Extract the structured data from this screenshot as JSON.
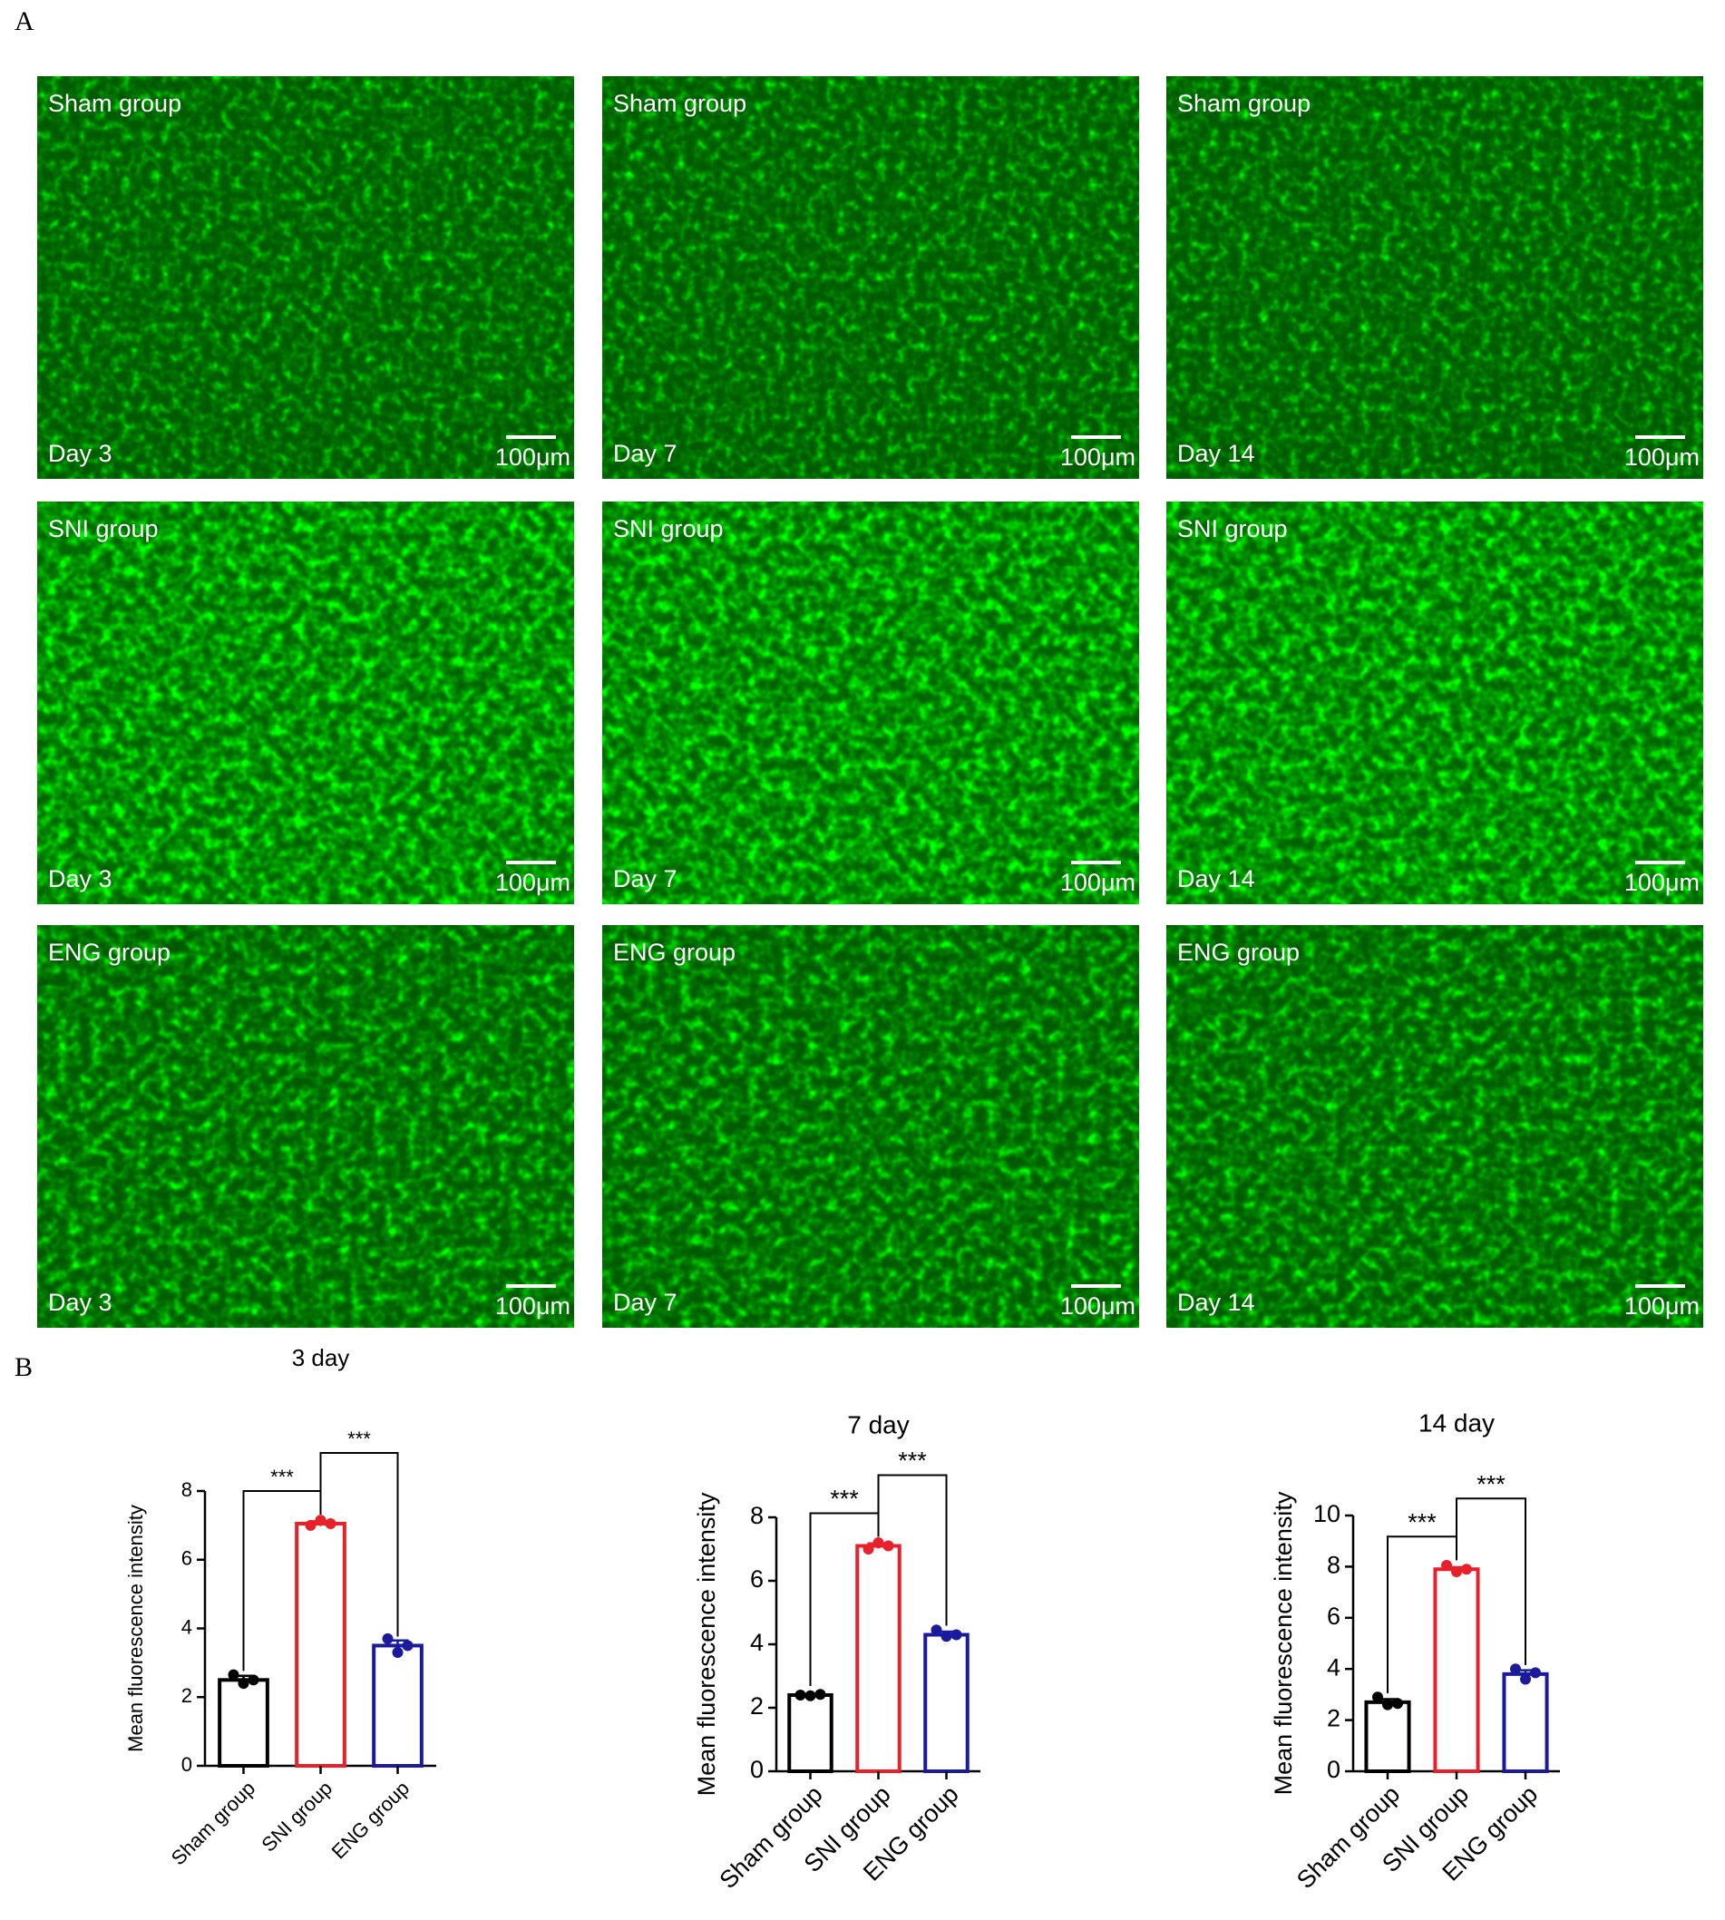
{
  "panel_labels": [
    "A",
    "B"
  ],
  "images": [
    {
      "group": "Sham group",
      "day": "Day 3",
      "scale": "100μm"
    },
    {
      "group": "Sham group",
      "day": "Day 7",
      "scale": "100μm"
    },
    {
      "group": "Sham group",
      "day": "Day 14",
      "scale": "100μm"
    },
    {
      "group": "SNI group",
      "day": "Day 3",
      "scale": "100μm"
    },
    {
      "group": "SNI group",
      "day": "Day 7",
      "scale": "100μm"
    },
    {
      "group": "SNI group",
      "day": "Day 14",
      "scale": "100μm"
    },
    {
      "group": "ENG group",
      "day": "Day 3",
      "scale": "100μm"
    },
    {
      "group": "ENG group",
      "day": "Day 7",
      "scale": "100μm"
    },
    {
      "group": "ENG group",
      "day": "Day 14",
      "scale": "100μm"
    }
  ],
  "chart_data": [
    {
      "type": "bar",
      "title": "3 day",
      "y_label": "Mean fluorescence intensity",
      "categories": [
        "Sham group",
        "SNI group",
        "ENG group"
      ],
      "values": [
        2.5,
        7.05,
        3.5
      ],
      "errors": [
        0.12,
        0.07,
        0.15
      ],
      "points": [
        [
          2.65,
          2.4,
          2.5
        ],
        [
          7.0,
          7.15,
          7.05
        ],
        [
          3.7,
          3.3,
          3.5
        ]
      ],
      "colors": [
        "#000000",
        "#e8202a",
        "#1a1a9c"
      ],
      "annotations": [
        "***",
        "***"
      ],
      "ylim": [
        0,
        8
      ],
      "yticks": [
        0,
        2,
        4,
        6,
        8
      ]
    },
    {
      "type": "bar",
      "title": "7 day",
      "y_label": "Mean fluorescence intensity",
      "categories": [
        "Sham group",
        "SNI group",
        "ENG group"
      ],
      "values": [
        2.4,
        7.1,
        4.3
      ],
      "errors": [
        0.03,
        0.08,
        0.1
      ],
      "points": [
        [
          2.4,
          2.38,
          2.42
        ],
        [
          7.0,
          7.2,
          7.1
        ],
        [
          4.45,
          4.25,
          4.3
        ]
      ],
      "colors": [
        "#000000",
        "#e8202a",
        "#1a1a9c"
      ],
      "annotations": [
        "***",
        "***"
      ],
      "ylim": [
        0,
        8
      ],
      "yticks": [
        0,
        2,
        4,
        6,
        8
      ]
    },
    {
      "type": "bar",
      "title": "14 day",
      "y_label": "Mean fluorescence intensity",
      "categories": [
        "Sham group",
        "SNI group",
        "ENG group"
      ],
      "values": [
        2.7,
        7.9,
        3.8
      ],
      "errors": [
        0.12,
        0.08,
        0.15
      ],
      "points": [
        [
          2.9,
          2.6,
          2.65
        ],
        [
          8.05,
          7.8,
          7.9
        ],
        [
          4.0,
          3.6,
          3.85
        ]
      ],
      "colors": [
        "#000000",
        "#e8202a",
        "#1a1a9c"
      ],
      "annotations": [
        "***",
        "***"
      ],
      "ylim": [
        0,
        10
      ],
      "yticks": [
        0,
        2,
        4,
        6,
        8,
        10
      ]
    }
  ]
}
